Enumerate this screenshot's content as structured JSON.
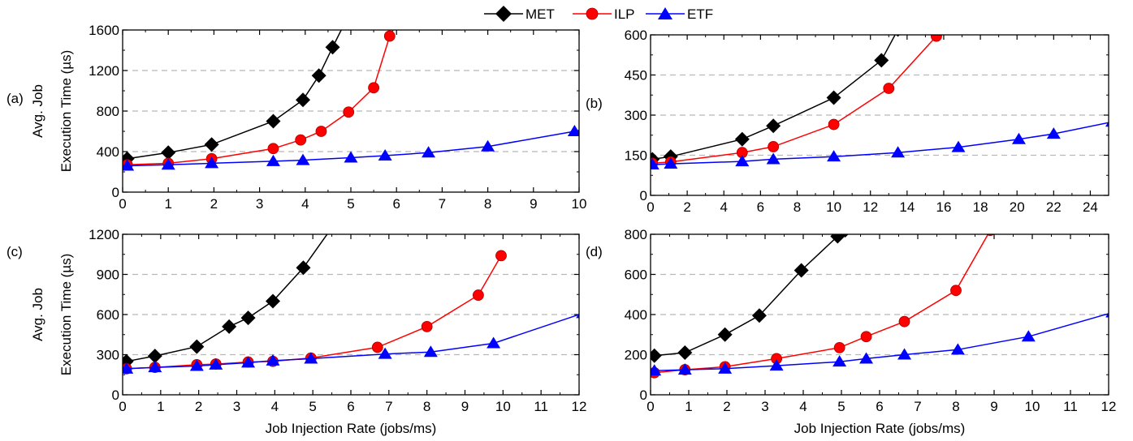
{
  "legend": [
    {
      "name": "MET",
      "color": "#000000",
      "marker": "diamond"
    },
    {
      "name": "ILP",
      "color": "#ff0000",
      "marker": "circle"
    },
    {
      "name": "ETF",
      "color": "#0000ff",
      "marker": "triangle"
    }
  ],
  "ylabel_line1": "Avg. Job",
  "ylabel_line2": "Execution Time (µs)",
  "xlabel": "Job Injection Rate (jobs/ms)",
  "chart_data": [
    {
      "type": "line",
      "panel_label": "(a)",
      "xlim": [
        0,
        10
      ],
      "ylim": [
        0,
        1600
      ],
      "xticks": [
        0,
        1,
        2,
        3,
        4,
        5,
        6,
        7,
        8,
        9,
        10
      ],
      "yticks": [
        0,
        400,
        800,
        1200,
        1600
      ],
      "grid": "y-dashed",
      "legend": "top-center",
      "series": [
        {
          "name": "MET",
          "color": "#000000",
          "marker": "diamond",
          "x": [
            0.1,
            1,
            1.95,
            3.3,
            3.95,
            4.3,
            4.6,
            4.9
          ],
          "y": [
            330,
            390,
            470,
            700,
            910,
            1150,
            1430,
            1700
          ]
        },
        {
          "name": "ILP",
          "color": "#ff0000",
          "marker": "circle",
          "x": [
            0.1,
            1,
            1.95,
            3.3,
            3.9,
            4.35,
            4.95,
            5.5,
            5.85,
            6.05
          ],
          "y": [
            270,
            285,
            330,
            430,
            515,
            600,
            790,
            1030,
            1540,
            1700
          ]
        },
        {
          "name": "ETF",
          "color": "#0000ff",
          "marker": "triangle",
          "x": [
            0.1,
            1,
            1.95,
            3.3,
            3.95,
            5,
            5.75,
            6.7,
            8,
            9.9,
            10.1
          ],
          "y": [
            260,
            270,
            285,
            305,
            315,
            340,
            360,
            390,
            450,
            600,
            620
          ]
        }
      ]
    },
    {
      "type": "line",
      "panel_label": "(b)",
      "xlim": [
        0,
        25
      ],
      "ylim": [
        0,
        600
      ],
      "xticks": [
        0,
        2,
        4,
        6,
        8,
        10,
        12,
        14,
        16,
        18,
        20,
        22,
        24
      ],
      "yticks": [
        0,
        150,
        300,
        450,
        600
      ],
      "grid": "y-dashed",
      "series": [
        {
          "name": "MET",
          "color": "#000000",
          "marker": "diamond",
          "x": [
            0.1,
            1.1,
            5,
            6.7,
            10,
            12.6,
            13.5
          ],
          "y": [
            135,
            145,
            210,
            260,
            365,
            505,
            620
          ]
        },
        {
          "name": "ILP",
          "color": "#ff0000",
          "marker": "circle",
          "x": [
            0.1,
            1.1,
            5,
            6.7,
            10,
            13,
            15.6,
            16
          ],
          "y": [
            120,
            125,
            160,
            182,
            265,
            400,
            595,
            620
          ]
        },
        {
          "name": "ETF",
          "color": "#0000ff",
          "marker": "triangle",
          "x": [
            0.1,
            1.1,
            5,
            6.7,
            10,
            13.5,
            16.8,
            20.1,
            22,
            25.2
          ],
          "y": [
            115,
            118,
            127,
            135,
            145,
            160,
            180,
            210,
            230,
            275
          ]
        }
      ]
    },
    {
      "type": "line",
      "panel_label": "(c)",
      "xlim": [
        0,
        12
      ],
      "ylim": [
        0,
        1200
      ],
      "xticks": [
        0,
        1,
        2,
        3,
        4,
        5,
        6,
        7,
        8,
        9,
        10,
        11,
        12
      ],
      "yticks": [
        0,
        300,
        600,
        900,
        1200
      ],
      "grid": "y-dashed",
      "series": [
        {
          "name": "MET",
          "color": "#000000",
          "marker": "diamond",
          "x": [
            0.1,
            0.85,
            1.95,
            2.8,
            3.3,
            3.95,
            4.75,
            5.5
          ],
          "y": [
            250,
            290,
            360,
            510,
            575,
            700,
            950,
            1250
          ]
        },
        {
          "name": "ILP",
          "color": "#ff0000",
          "marker": "circle",
          "x": [
            0.1,
            0.85,
            1.95,
            2.45,
            3.3,
            3.95,
            4.95,
            6.7,
            8,
            9.35,
            9.95
          ],
          "y": [
            195,
            205,
            225,
            230,
            245,
            250,
            275,
            355,
            510,
            745,
            1040
          ]
        },
        {
          "name": "ETF",
          "color": "#0000ff",
          "marker": "triangle",
          "x": [
            0.1,
            0.85,
            1.95,
            2.45,
            3.3,
            3.95,
            4.95,
            6.9,
            8.1,
            9.75,
            12.1
          ],
          "y": [
            195,
            205,
            215,
            225,
            240,
            255,
            270,
            305,
            320,
            385,
            610
          ]
        }
      ]
    },
    {
      "type": "line",
      "panel_label": "(d)",
      "xlim": [
        0,
        12
      ],
      "ylim": [
        0,
        800
      ],
      "xticks": [
        0,
        1,
        2,
        3,
        4,
        5,
        6,
        7,
        8,
        9,
        10,
        11,
        12
      ],
      "yticks": [
        0,
        200,
        400,
        600,
        800
      ],
      "grid": "y-dashed",
      "series": [
        {
          "name": "MET",
          "color": "#000000",
          "marker": "diamond",
          "x": [
            0.1,
            0.9,
            1.95,
            2.85,
            3.95,
            4.9,
            5.1
          ],
          "y": [
            195,
            210,
            300,
            395,
            620,
            790,
            820
          ]
        },
        {
          "name": "ILP",
          "color": "#ff0000",
          "marker": "circle",
          "x": [
            0.1,
            0.9,
            1.95,
            3.3,
            4.95,
            5.65,
            6.65,
            8,
            8.9
          ],
          "y": [
            110,
            125,
            140,
            180,
            235,
            290,
            365,
            520,
            820
          ]
        },
        {
          "name": "ETF",
          "color": "#0000ff",
          "marker": "triangle",
          "x": [
            0.1,
            0.9,
            1.95,
            3.3,
            4.95,
            5.65,
            6.65,
            8.05,
            9.9,
            12.1
          ],
          "y": [
            120,
            125,
            130,
            145,
            165,
            180,
            200,
            225,
            290,
            410
          ]
        }
      ]
    }
  ]
}
